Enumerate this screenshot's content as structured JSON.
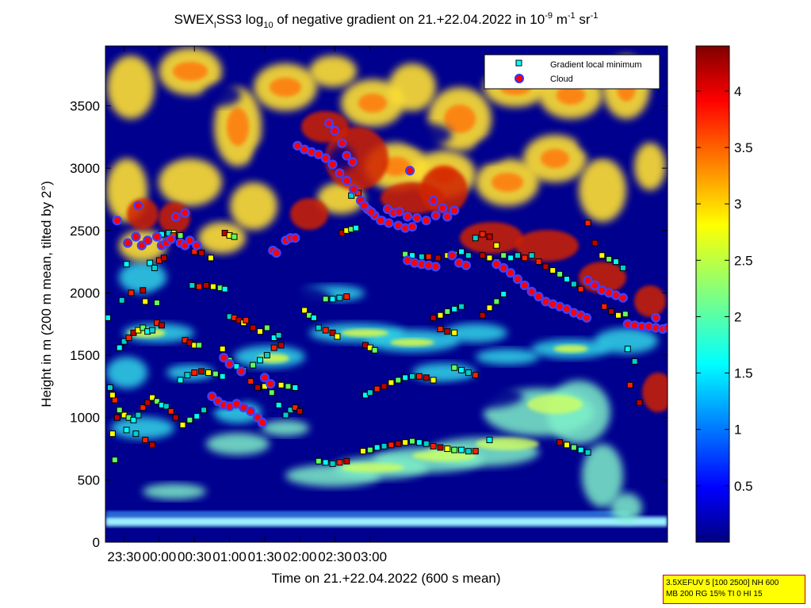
{
  "chart_data": {
    "type": "heatmap",
    "title": {
      "part1": "SWEX",
      "part1_sub": "I",
      "part2": "SS3 log",
      "part2_sub": "10",
      "part3": " of negative gradient on 21.+22.04.2022 in 10",
      "part3_sup": "-9",
      "part4": " m",
      "part4_sup": "-1",
      "part5": " sr",
      "part5_sup": "-1"
    },
    "xlabel": "Time on 21.+22.04.2022 (600 s mean)",
    "ylabel": "Height in m (200 m mean, tilted by 2°)",
    "x_ticks": [
      "23:30",
      "00:00",
      "00:30",
      "01:00",
      "01:30",
      "02:00",
      "02:30",
      "03:00"
    ],
    "y_ticks": [
      "0",
      "500",
      "1000",
      "1500",
      "2000",
      "2500",
      "3000",
      "3500"
    ],
    "xlim_minutes": [
      -46,
      434
    ],
    "ylim": [
      0,
      3980
    ],
    "colorbar": {
      "ticks": [
        "0.5",
        "1",
        "1.5",
        "2",
        "2.5",
        "3",
        "3.5",
        "4"
      ],
      "range": [
        0,
        4.4
      ]
    },
    "legend": {
      "placement": "top-right",
      "entries": [
        {
          "label": "Gradient local minimum",
          "marker": "square",
          "color": "#00ffff"
        },
        {
          "label": "Cloud",
          "marker": "circle",
          "color": "#ff0000"
        }
      ]
    },
    "cloud_points": [
      [
        -27,
        2400
      ],
      [
        -20,
        2450
      ],
      [
        -15,
        2380
      ],
      [
        -10,
        2420
      ],
      [
        -2,
        2450
      ],
      [
        2,
        2380
      ],
      [
        6,
        2400
      ],
      [
        10,
        2430
      ],
      [
        14,
        2610
      ],
      [
        18,
        2400
      ],
      [
        22,
        2380
      ],
      [
        26,
        2420
      ],
      [
        32,
        2380
      ],
      [
        45,
        1170
      ],
      [
        50,
        1130
      ],
      [
        55,
        1100
      ],
      [
        60,
        1090
      ],
      [
        66,
        1110
      ],
      [
        72,
        1080
      ],
      [
        78,
        1050
      ],
      [
        84,
        1000
      ],
      [
        88,
        960
      ],
      [
        95,
        1270
      ],
      [
        90,
        1320
      ],
      [
        60,
        1430
      ],
      [
        55,
        1480
      ],
      [
        70,
        1370
      ],
      [
        97,
        2340
      ],
      [
        100,
        2320
      ],
      [
        108,
        2420
      ],
      [
        112,
        2440
      ],
      [
        116,
        2440
      ],
      [
        118,
        3180
      ],
      [
        124,
        3150
      ],
      [
        130,
        3130
      ],
      [
        136,
        3110
      ],
      [
        142,
        3080
      ],
      [
        148,
        3030
      ],
      [
        154,
        2960
      ],
      [
        160,
        2900
      ],
      [
        166,
        2830
      ],
      [
        172,
        2740
      ],
      [
        178,
        2670
      ],
      [
        184,
        2620
      ],
      [
        190,
        2580
      ],
      [
        196,
        2560
      ],
      [
        204,
        2540
      ],
      [
        210,
        2520
      ],
      [
        216,
        2530
      ],
      [
        212,
        2260
      ],
      [
        218,
        2240
      ],
      [
        224,
        2230
      ],
      [
        230,
        2220
      ],
      [
        236,
        2210
      ],
      [
        145,
        3360
      ],
      [
        150,
        3300
      ],
      [
        156,
        3200
      ],
      [
        160,
        3100
      ],
      [
        165,
        3050
      ],
      [
        175,
        2700
      ],
      [
        181,
        2650
      ],
      [
        189,
        2580
      ],
      [
        195,
        2670
      ],
      [
        200,
        2640
      ],
      [
        205,
        2650
      ],
      [
        212,
        2610
      ],
      [
        220,
        2600
      ],
      [
        228,
        2580
      ],
      [
        236,
        2620
      ],
      [
        242,
        2680
      ],
      [
        246,
        2610
      ],
      [
        252,
        2660
      ],
      [
        214,
        2980
      ],
      [
        234,
        2740
      ],
      [
        250,
        2300
      ],
      [
        256,
        2240
      ],
      [
        262,
        2220
      ],
      [
        288,
        2230
      ],
      [
        294,
        2200
      ],
      [
        300,
        2160
      ],
      [
        306,
        2110
      ],
      [
        312,
        2060
      ],
      [
        318,
        2010
      ],
      [
        324,
        1970
      ],
      [
        330,
        1930
      ],
      [
        336,
        1910
      ],
      [
        342,
        1890
      ],
      [
        348,
        1870
      ],
      [
        354,
        1840
      ],
      [
        360,
        1820
      ],
      [
        365,
        1800
      ],
      [
        366,
        2100
      ],
      [
        372,
        2060
      ],
      [
        378,
        2020
      ],
      [
        384,
        2000
      ],
      [
        390,
        1980
      ],
      [
        396,
        1960
      ],
      [
        400,
        1750
      ],
      [
        406,
        1740
      ],
      [
        412,
        1730
      ],
      [
        418,
        1730
      ],
      [
        424,
        1720
      ],
      [
        430,
        1710
      ],
      [
        434,
        1720
      ],
      [
        424,
        1800
      ],
      [
        -36,
        2580
      ],
      [
        -18,
        2700
      ],
      [
        22,
        2640
      ]
    ],
    "gradient_min_points": [
      [
        -44,
        1800
      ],
      [
        -42,
        1240
      ],
      [
        -38,
        1140
      ],
      [
        -36,
        1000
      ],
      [
        -40,
        870
      ],
      [
        -38,
        660
      ],
      [
        -34,
        1560
      ],
      [
        -30,
        1610
      ],
      [
        -26,
        1640
      ],
      [
        -22,
        1680
      ],
      [
        -18,
        1700
      ],
      [
        -14,
        1720
      ],
      [
        -10,
        1690
      ],
      [
        -6,
        1700
      ],
      [
        -2,
        1760
      ],
      [
        2,
        1740
      ],
      [
        -30,
        1020
      ],
      [
        -26,
        1000
      ],
      [
        -22,
        980
      ],
      [
        -18,
        1020
      ],
      [
        -14,
        1080
      ],
      [
        -10,
        1120
      ],
      [
        -6,
        1160
      ],
      [
        -2,
        1130
      ],
      [
        2,
        1100
      ],
      [
        6,
        1090
      ],
      [
        10,
        1050
      ],
      [
        14,
        1000
      ],
      [
        20,
        940
      ],
      [
        26,
        980
      ],
      [
        32,
        1010
      ],
      [
        38,
        1060
      ],
      [
        22,
        1620
      ],
      [
        26,
        1600
      ],
      [
        30,
        1580
      ],
      [
        34,
        1580
      ],
      [
        -8,
        2240
      ],
      [
        -4,
        2200
      ],
      [
        0,
        2260
      ],
      [
        4,
        2280
      ],
      [
        12,
        2480
      ],
      [
        18,
        2460
      ],
      [
        -28,
        2230
      ],
      [
        -32,
        1940
      ],
      [
        -24,
        2000
      ],
      [
        -14,
        2020
      ],
      [
        -12,
        1930
      ],
      [
        -2,
        1920
      ],
      [
        2,
        2470
      ],
      [
        8,
        2480
      ],
      [
        12,
        2460
      ],
      [
        56,
        2480
      ],
      [
        60,
        2460
      ],
      [
        64,
        2450
      ],
      [
        18,
        1300
      ],
      [
        24,
        1340
      ],
      [
        30,
        1360
      ],
      [
        36,
        1370
      ],
      [
        42,
        1360
      ],
      [
        48,
        1350
      ],
      [
        54,
        1330
      ],
      [
        28,
        2060
      ],
      [
        34,
        2050
      ],
      [
        40,
        2060
      ],
      [
        46,
        2050
      ],
      [
        52,
        2040
      ],
      [
        56,
        2030
      ],
      [
        60,
        1810
      ],
      [
        64,
        1800
      ],
      [
        68,
        1780
      ],
      [
        72,
        1760
      ],
      [
        80,
        1420
      ],
      [
        86,
        1460
      ],
      [
        92,
        1500
      ],
      [
        98,
        1560
      ],
      [
        104,
        1580
      ],
      [
        104,
        1260
      ],
      [
        110,
        1250
      ],
      [
        116,
        1240
      ],
      [
        112,
        1060
      ],
      [
        116,
        1080
      ],
      [
        120,
        1050
      ],
      [
        124,
        1860
      ],
      [
        128,
        1820
      ],
      [
        132,
        1800
      ],
      [
        136,
        1720
      ],
      [
        142,
        1700
      ],
      [
        148,
        1680
      ],
      [
        152,
        1650
      ],
      [
        142,
        1950
      ],
      [
        148,
        1950
      ],
      [
        154,
        1960
      ],
      [
        160,
        1970
      ],
      [
        156,
        2480
      ],
      [
        160,
        2500
      ],
      [
        164,
        2510
      ],
      [
        168,
        2520
      ],
      [
        164,
        2780
      ],
      [
        170,
        2800
      ],
      [
        176,
        1580
      ],
      [
        180,
        1560
      ],
      [
        184,
        1540
      ],
      [
        176,
        1180
      ],
      [
        180,
        1200
      ],
      [
        186,
        1230
      ],
      [
        192,
        1250
      ],
      [
        198,
        1280
      ],
      [
        204,
        1300
      ],
      [
        210,
        1320
      ],
      [
        216,
        1330
      ],
      [
        222,
        1330
      ],
      [
        228,
        1320
      ],
      [
        234,
        1300
      ],
      [
        136,
        650
      ],
      [
        142,
        640
      ],
      [
        148,
        630
      ],
      [
        154,
        640
      ],
      [
        160,
        650
      ],
      [
        174,
        730
      ],
      [
        180,
        740
      ],
      [
        186,
        760
      ],
      [
        192,
        770
      ],
      [
        198,
        780
      ],
      [
        204,
        790
      ],
      [
        210,
        800
      ],
      [
        216,
        810
      ],
      [
        222,
        800
      ],
      [
        228,
        790
      ],
      [
        234,
        770
      ],
      [
        240,
        760
      ],
      [
        246,
        750
      ],
      [
        252,
        740
      ],
      [
        258,
        740
      ],
      [
        264,
        730
      ],
      [
        270,
        730
      ],
      [
        234,
        1800
      ],
      [
        240,
        1820
      ],
      [
        246,
        1850
      ],
      [
        252,
        1870
      ],
      [
        258,
        1890
      ],
      [
        240,
        1710
      ],
      [
        246,
        1690
      ],
      [
        252,
        1680
      ],
      [
        252,
        1400
      ],
      [
        258,
        1380
      ],
      [
        264,
        1360
      ],
      [
        270,
        1340
      ],
      [
        276,
        1820
      ],
      [
        282,
        1880
      ],
      [
        288,
        1930
      ],
      [
        294,
        1990
      ],
      [
        270,
        2440
      ],
      [
        276,
        2470
      ],
      [
        282,
        2450
      ],
      [
        288,
        2380
      ],
      [
        294,
        2300
      ],
      [
        300,
        2280
      ],
      [
        306,
        2300
      ],
      [
        312,
        2280
      ],
      [
        276,
        2300
      ],
      [
        282,
        2280
      ],
      [
        288,
        2250
      ],
      [
        282,
        820
      ],
      [
        318,
        2300
      ],
      [
        324,
        2250
      ],
      [
        330,
        2210
      ],
      [
        336,
        2180
      ],
      [
        342,
        2150
      ],
      [
        348,
        2110
      ],
      [
        354,
        2070
      ],
      [
        360,
        2030
      ],
      [
        342,
        800
      ],
      [
        348,
        780
      ],
      [
        354,
        760
      ],
      [
        360,
        740
      ],
      [
        366,
        720
      ],
      [
        366,
        2560
      ],
      [
        372,
        2400
      ],
      [
        378,
        2300
      ],
      [
        384,
        2270
      ],
      [
        390,
        2250
      ],
      [
        396,
        2200
      ],
      [
        380,
        1890
      ],
      [
        386,
        1850
      ],
      [
        392,
        1820
      ],
      [
        398,
        1830
      ],
      [
        400,
        1550
      ],
      [
        406,
        1450
      ],
      [
        402,
        1260
      ],
      [
        410,
        1120
      ],
      [
        -40,
        1180
      ],
      [
        -34,
        1060
      ],
      [
        -28,
        900
      ],
      [
        -20,
        870
      ],
      [
        -12,
        820
      ],
      [
        -6,
        780
      ],
      [
        54,
        1550
      ],
      [
        60,
        1460
      ],
      [
        66,
        1410
      ],
      [
        72,
        1380
      ],
      [
        78,
        1290
      ],
      [
        84,
        1240
      ],
      [
        90,
        1250
      ],
      [
        96,
        1200
      ],
      [
        102,
        1100
      ],
      [
        108,
        1020
      ],
      [
        74,
        1780
      ],
      [
        80,
        1720
      ],
      [
        86,
        1690
      ],
      [
        92,
        1720
      ],
      [
        98,
        1640
      ],
      [
        102,
        1660
      ],
      [
        30,
        2330
      ],
      [
        36,
        2320
      ],
      [
        44,
        2280
      ],
      [
        210,
        2310
      ],
      [
        216,
        2300
      ],
      [
        224,
        2290
      ],
      [
        230,
        2290
      ],
      [
        238,
        2280
      ],
      [
        246,
        2300
      ],
      [
        252,
        2310
      ],
      [
        258,
        2330
      ],
      [
        264,
        2300
      ]
    ]
  }
}
